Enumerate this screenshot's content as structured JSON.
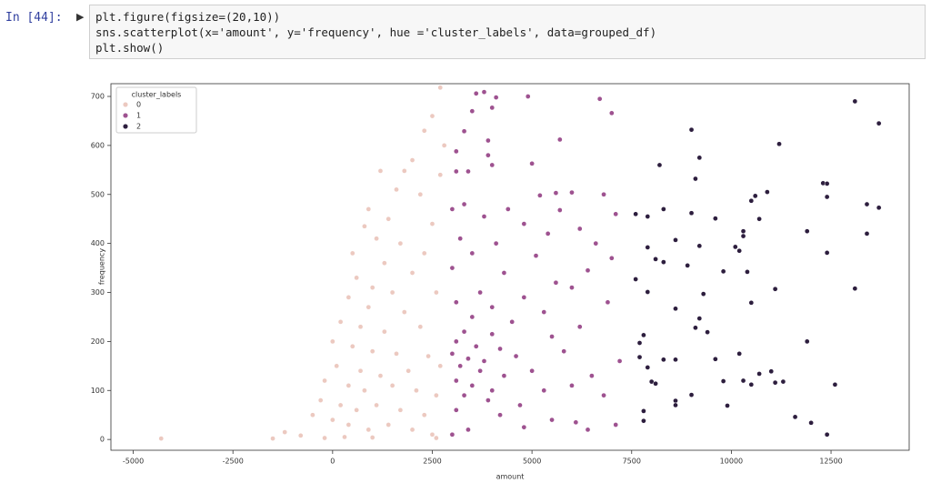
{
  "cell": {
    "prompt": "In [44]:",
    "code": [
      "plt.figure(figsize=(20,10))",
      "sns.scatterplot(x='amount', y='frequency', hue ='cluster_labels', data=grouped_df)",
      "plt.show()"
    ]
  },
  "chart_data": {
    "type": "scatter",
    "xlabel": "amount",
    "ylabel": "frequency",
    "legend_title": "cluster_labels",
    "legend": "upper left",
    "xlim": [
      -5560,
      14460
    ],
    "ylim": [
      -22,
      726
    ],
    "xticks": [
      -5000,
      -2500,
      0,
      2500,
      5000,
      7500,
      10000,
      12500
    ],
    "yticks": [
      0,
      100,
      200,
      300,
      400,
      500,
      600,
      700
    ],
    "series": [
      {
        "name": "0",
        "color": "#ecc9c0",
        "x": [
          2700,
          2500,
          2300,
          2800,
          2000,
          1200,
          1800,
          2700,
          1600,
          2200,
          900,
          1400,
          2500,
          800,
          1100,
          1700,
          2300,
          500,
          1300,
          2000,
          600,
          1000,
          1500,
          2600,
          400,
          900,
          1800,
          200,
          700,
          1300,
          2200,
          0,
          500,
          1000,
          1600,
          2400,
          100,
          700,
          1200,
          1900,
          2700,
          -200,
          400,
          800,
          1500,
          2100,
          2600,
          -300,
          200,
          600,
          1100,
          1700,
          2300,
          -500,
          0,
          400,
          900,
          1400,
          2000,
          2500,
          -1200,
          -800,
          -1500,
          -4300,
          -200,
          300,
          1000,
          2600
        ],
        "values": [
          718,
          660,
          630,
          600,
          570,
          548,
          548,
          540,
          510,
          500,
          470,
          450,
          440,
          435,
          410,
          400,
          380,
          380,
          360,
          340,
          330,
          310,
          300,
          300,
          290,
          270,
          260,
          240,
          230,
          220,
          230,
          200,
          190,
          180,
          175,
          170,
          150,
          140,
          130,
          140,
          150,
          120,
          110,
          100,
          110,
          100,
          90,
          80,
          70,
          60,
          70,
          60,
          50,
          50,
          40,
          30,
          20,
          30,
          20,
          10,
          15,
          8,
          2,
          2,
          3,
          5,
          4,
          3
        ]
      },
      {
        "name": "1",
        "color": "#9e5290",
        "x": [
          3600,
          3800,
          4100,
          4900,
          6700,
          3500,
          4000,
          7000,
          3300,
          3900,
          5700,
          3100,
          3900,
          4000,
          5000,
          3400,
          3100,
          6000,
          5200,
          5600,
          6800,
          3300,
          4400,
          5700,
          7100,
          3000,
          3800,
          4800,
          6200,
          5400,
          3200,
          4100,
          6600,
          3500,
          5100,
          7000,
          3000,
          4300,
          6400,
          5600,
          3700,
          4800,
          6000,
          3100,
          4000,
          5300,
          6900,
          3500,
          4500,
          6200,
          3300,
          4000,
          5500,
          3100,
          3600,
          4200,
          3000,
          3400,
          3800,
          4600,
          5800,
          7200,
          3200,
          3700,
          4300,
          5000,
          6500,
          3100,
          3500,
          4000,
          5300,
          6000,
          3300,
          3900,
          4700,
          6800,
          3100,
          4200,
          5500,
          6100,
          7100,
          3400,
          4800,
          6400,
          3000
        ],
        "values": [
          706,
          709,
          698,
          700,
          695,
          670,
          677,
          666,
          629,
          610,
          612,
          588,
          580,
          560,
          563,
          547,
          547,
          504,
          498,
          503,
          500,
          480,
          470,
          468,
          460,
          470,
          455,
          440,
          430,
          420,
          410,
          400,
          400,
          380,
          375,
          370,
          350,
          340,
          345,
          320,
          300,
          290,
          310,
          280,
          270,
          260,
          280,
          250,
          240,
          230,
          220,
          215,
          210,
          200,
          190,
          185,
          175,
          165,
          160,
          170,
          180,
          160,
          150,
          140,
          130,
          140,
          130,
          120,
          110,
          100,
          100,
          110,
          90,
          80,
          70,
          90,
          60,
          50,
          40,
          35,
          30,
          20,
          25,
          20,
          10
        ]
      },
      {
        "name": "2",
        "color": "#2d1e3e",
        "x": [
          13100,
          13700,
          9000,
          11200,
          8200,
          9200,
          9100,
          12300,
          12400,
          10900,
          10600,
          10500,
          12400,
          13400,
          13700,
          8300,
          7600,
          7900,
          9000,
          9600,
          10700,
          11900,
          10300,
          10300,
          8600,
          10100,
          10200,
          9200,
          8100,
          7900,
          8300,
          12400,
          13400,
          10400,
          9800,
          7600,
          8900,
          11100,
          13100,
          7900,
          9300,
          10500,
          8600,
          9200,
          9100,
          9400,
          7800,
          7700,
          9600,
          8300,
          8600,
          10200,
          11900,
          7700,
          7900,
          8000,
          8100,
          9800,
          10300,
          10500,
          10700,
          11000,
          11300,
          11100,
          12600,
          9000,
          8600,
          8600,
          9900,
          7800,
          7800,
          11600,
          12000,
          12400
        ],
        "values": [
          690,
          645,
          632,
          603,
          560,
          575,
          532,
          523,
          522,
          505,
          497,
          487,
          495,
          480,
          473,
          470,
          460,
          455,
          462,
          451,
          450,
          425,
          425,
          415,
          407,
          393,
          385,
          395,
          368,
          392,
          362,
          381,
          420,
          342,
          343,
          327,
          355,
          307,
          308,
          301,
          297,
          279,
          267,
          247,
          228,
          219,
          213,
          197,
          164,
          163,
          163,
          175,
          200,
          168,
          147,
          118,
          114,
          119,
          120,
          112,
          134,
          139,
          118,
          116,
          112,
          91,
          79,
          70,
          69,
          58,
          38,
          46,
          34,
          10
        ]
      }
    ]
  }
}
